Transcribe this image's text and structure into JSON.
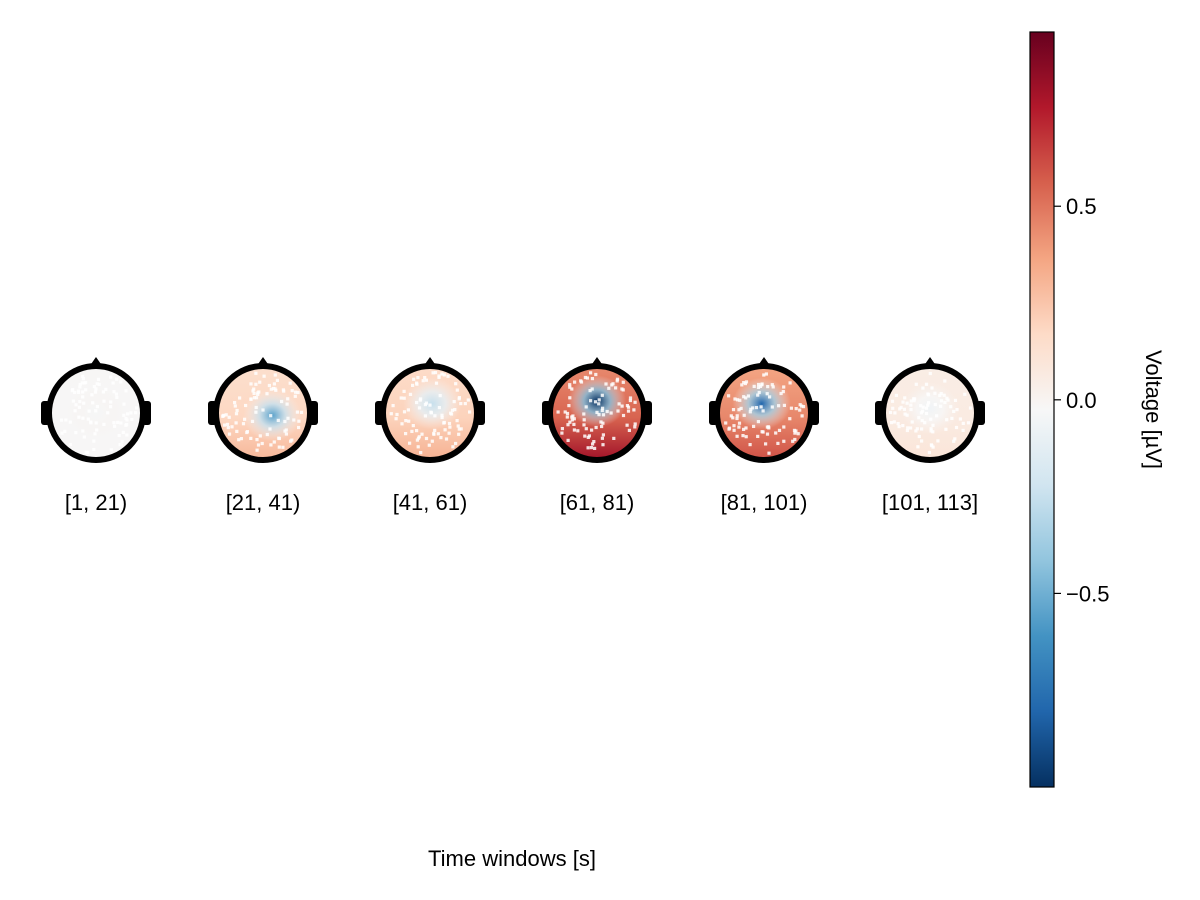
{
  "chart_data": {
    "type": "heatmap",
    "subtype": "topoplot-series",
    "xlabel": "Time windows [s]",
    "colorbar": {
      "label": "Voltage [µV]",
      "range": [
        -1.0,
        0.95
      ],
      "ticks": [
        0.5,
        0.0,
        -0.5
      ],
      "tick_labels": [
        "0.5",
        "0.0",
        "−0.5"
      ],
      "colormap": "RdBu (reversed: blue negative, red positive)"
    },
    "panels": [
      {
        "label": "[1, 21)",
        "center_value": -0.02,
        "blob": {
          "cx": 0.0,
          "cy": 0.0,
          "value": -0.03
        },
        "occipital": -0.02
      },
      {
        "label": "[21, 41)",
        "center_value": 0.18,
        "blob": {
          "cx": 0.2,
          "cy": 0.05,
          "value": -0.55
        },
        "occipital": 0.3
      },
      {
        "label": "[41, 61)",
        "center_value": 0.2,
        "blob": {
          "cx": 0.05,
          "cy": -0.2,
          "value": -0.25
        },
        "occipital": 0.32
      },
      {
        "label": "[61, 81)",
        "center_value": 0.55,
        "blob": {
          "cx": 0.0,
          "cy": -0.25,
          "value": -1.0
        },
        "occipital": 0.8
      },
      {
        "label": "[81, 101)",
        "center_value": 0.45,
        "blob": {
          "cx": -0.05,
          "cy": -0.2,
          "value": -0.8
        },
        "occipital": 0.6
      },
      {
        "label": "[101, 113]",
        "center_value": 0.06,
        "blob": {
          "cx": 0.0,
          "cy": -0.1,
          "value": -0.06
        },
        "occipital": 0.1
      }
    ]
  }
}
